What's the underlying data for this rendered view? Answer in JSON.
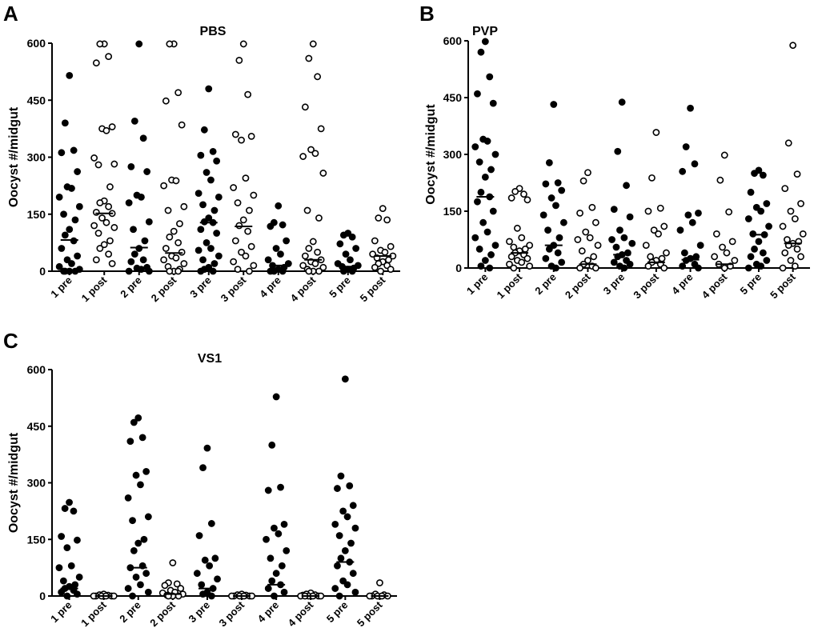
{
  "chart_data": [
    {
      "type": "scatter",
      "panel": "A",
      "title": "PBS",
      "ylabel": "Oocyst #/midgut",
      "ylim": [
        0,
        600
      ],
      "yticks": [
        "0",
        "150",
        "300",
        "450",
        "600"
      ],
      "categories": [
        "1 pre",
        "1 post",
        "2 pre",
        "2 post",
        "3 pre",
        "3 post",
        "4 pre",
        "4 post",
        "5 pre",
        "5 post"
      ],
      "filled": [
        true,
        false,
        true,
        false,
        true,
        false,
        true,
        false,
        true,
        false
      ],
      "medians": [
        82,
        152,
        62,
        48,
        128,
        118,
        15,
        30,
        12,
        40
      ],
      "points": [
        [
          515,
          390,
          318,
          312,
          262,
          222,
          218,
          195,
          170,
          150,
          135,
          110,
          95,
          80,
          60,
          40,
          30,
          20,
          12,
          5,
          0,
          0,
          0,
          0
        ],
        [
          598,
          598,
          565,
          548,
          380,
          375,
          370,
          298,
          282,
          280,
          222,
          185,
          180,
          170,
          155,
          152,
          140,
          128,
          120,
          115,
          100,
          80,
          70,
          60,
          45,
          30,
          20
        ],
        [
          598,
          395,
          350,
          275,
          262,
          200,
          195,
          180,
          130,
          110,
          80,
          60,
          45,
          30,
          25,
          10,
          8,
          5,
          0,
          0
        ],
        [
          598,
          598,
          470,
          448,
          385,
          240,
          238,
          225,
          170,
          160,
          125,
          105,
          90,
          75,
          60,
          50,
          40,
          35,
          30,
          20,
          12,
          5,
          0,
          0,
          0
        ],
        [
          480,
          372,
          315,
          305,
          290,
          260,
          240,
          205,
          195,
          175,
          160,
          140,
          130,
          128,
          110,
          100,
          75,
          60,
          55,
          40,
          30,
          20,
          10,
          5,
          0,
          0
        ],
        [
          598,
          555,
          465,
          360,
          355,
          345,
          245,
          220,
          200,
          180,
          160,
          135,
          120,
          105,
          80,
          65,
          50,
          40,
          25,
          15,
          5,
          0
        ],
        [
          172,
          128,
          122,
          118,
          80,
          60,
          45,
          30,
          20,
          15,
          10,
          5,
          0,
          0,
          0
        ],
        [
          598,
          560,
          512,
          432,
          375,
          320,
          310,
          302,
          258,
          160,
          140,
          78,
          60,
          50,
          40,
          30,
          25,
          20,
          15,
          10,
          5,
          0,
          0,
          0
        ],
        [
          100,
          95,
          90,
          72,
          60,
          45,
          30,
          20,
          15,
          12,
          8,
          5,
          0,
          0
        ],
        [
          165,
          140,
          135,
          80,
          65,
          55,
          50,
          45,
          40,
          35,
          30,
          25,
          20,
          15,
          10,
          5,
          0
        ]
      ]
    },
    {
      "type": "scatter",
      "panel": "B",
      "title": "PVP",
      "ylabel": "Oocyst #/midgut",
      "ylim": [
        0,
        600
      ],
      "yticks": [
        "0",
        "150",
        "300",
        "450",
        "600"
      ],
      "categories": [
        "1 pre",
        "1 post",
        "2 pre",
        "2 post",
        "3 pre",
        "3 post",
        "4 pre",
        "4 post",
        "5 pre",
        "5 post"
      ],
      "filled": [
        true,
        false,
        true,
        false,
        true,
        false,
        true,
        false,
        true,
        false
      ],
      "medians": [
        188,
        40,
        60,
        10,
        35,
        15,
        22,
        10,
        88,
        65
      ],
      "points": [
        [
          598,
          570,
          505,
          460,
          435,
          340,
          335,
          320,
          300,
          280,
          260,
          240,
          200,
          188,
          175,
          150,
          120,
          95,
          80,
          60,
          50,
          35,
          20,
          5,
          0
        ],
        [
          210,
          202,
          195,
          185,
          180,
          105,
          80,
          70,
          60,
          55,
          50,
          45,
          40,
          35,
          30,
          25,
          20,
          15,
          10,
          5,
          0
        ],
        [
          432,
          278,
          225,
          222,
          205,
          185,
          165,
          140,
          120,
          100,
          80,
          60,
          50,
          40,
          25,
          15,
          5,
          0
        ],
        [
          252,
          230,
          160,
          145,
          120,
          95,
          80,
          75,
          60,
          45,
          30,
          20,
          10,
          5,
          0,
          0
        ],
        [
          438,
          308,
          218,
          155,
          135,
          100,
          80,
          75,
          65,
          55,
          40,
          35,
          30,
          20,
          15,
          10,
          5,
          0
        ],
        [
          358,
          238,
          158,
          150,
          110,
          100,
          90,
          60,
          40,
          30,
          25,
          20,
          15,
          10,
          5,
          0
        ],
        [
          422,
          320,
          275,
          255,
          145,
          140,
          120,
          100,
          60,
          40,
          30,
          25,
          20,
          10,
          5,
          0
        ],
        [
          298,
          232,
          148,
          90,
          70,
          55,
          40,
          30,
          20,
          10,
          5,
          0
        ],
        [
          258,
          250,
          245,
          200,
          170,
          160,
          150,
          130,
          110,
          90,
          88,
          70,
          50,
          40,
          30,
          20,
          10,
          5,
          0
        ],
        [
          588,
          330,
          248,
          210,
          170,
          150,
          130,
          110,
          90,
          75,
          70,
          65,
          60,
          50,
          40,
          30,
          20,
          5,
          0
        ]
      ]
    },
    {
      "type": "scatter",
      "panel": "C",
      "title": "VS1",
      "ylabel": "Oocyst #/midgut",
      "ylim": [
        0,
        600
      ],
      "yticks": [
        "0",
        "150",
        "300",
        "450",
        "600"
      ],
      "categories": [
        "1 pre",
        "1 post",
        "2 pre",
        "2 post",
        "3 pre",
        "3 post",
        "4 pre",
        "4 post",
        "5 pre",
        "5 post"
      ],
      "filled": [
        true,
        false,
        true,
        false,
        true,
        false,
        true,
        false,
        true,
        false
      ],
      "medians": [
        20,
        0,
        75,
        5,
        20,
        0,
        30,
        0,
        90,
        0
      ],
      "points": [
        [
          248,
          232,
          225,
          158,
          148,
          128,
          80,
          75,
          50,
          40,
          30,
          25,
          20,
          15,
          10,
          5,
          0
        ],
        [
          5,
          3,
          2,
          0,
          0,
          0,
          0,
          0,
          0
        ],
        [
          472,
          460,
          420,
          410,
          330,
          320,
          295,
          260,
          210,
          200,
          150,
          140,
          120,
          80,
          75,
          60,
          50,
          30,
          20,
          10,
          0
        ],
        [
          88,
          35,
          32,
          28,
          20,
          15,
          10,
          8,
          5,
          2,
          0,
          0,
          0
        ],
        [
          392,
          340,
          192,
          160,
          100,
          95,
          80,
          60,
          45,
          30,
          20,
          10,
          5,
          0
        ],
        [
          5,
          3,
          2,
          0,
          0,
          0,
          0,
          0,
          0
        ],
        [
          528,
          400,
          288,
          280,
          190,
          180,
          165,
          150,
          120,
          100,
          80,
          60,
          40,
          30,
          20,
          10,
          0
        ],
        [
          8,
          5,
          3,
          2,
          0,
          0,
          0,
          0,
          0,
          0
        ],
        [
          575,
          318,
          292,
          285,
          240,
          225,
          210,
          190,
          180,
          160,
          140,
          120,
          100,
          90,
          80,
          60,
          40,
          30,
          20,
          10,
          0
        ],
        [
          35,
          5,
          3,
          0,
          0,
          0,
          0,
          0
        ]
      ]
    }
  ]
}
